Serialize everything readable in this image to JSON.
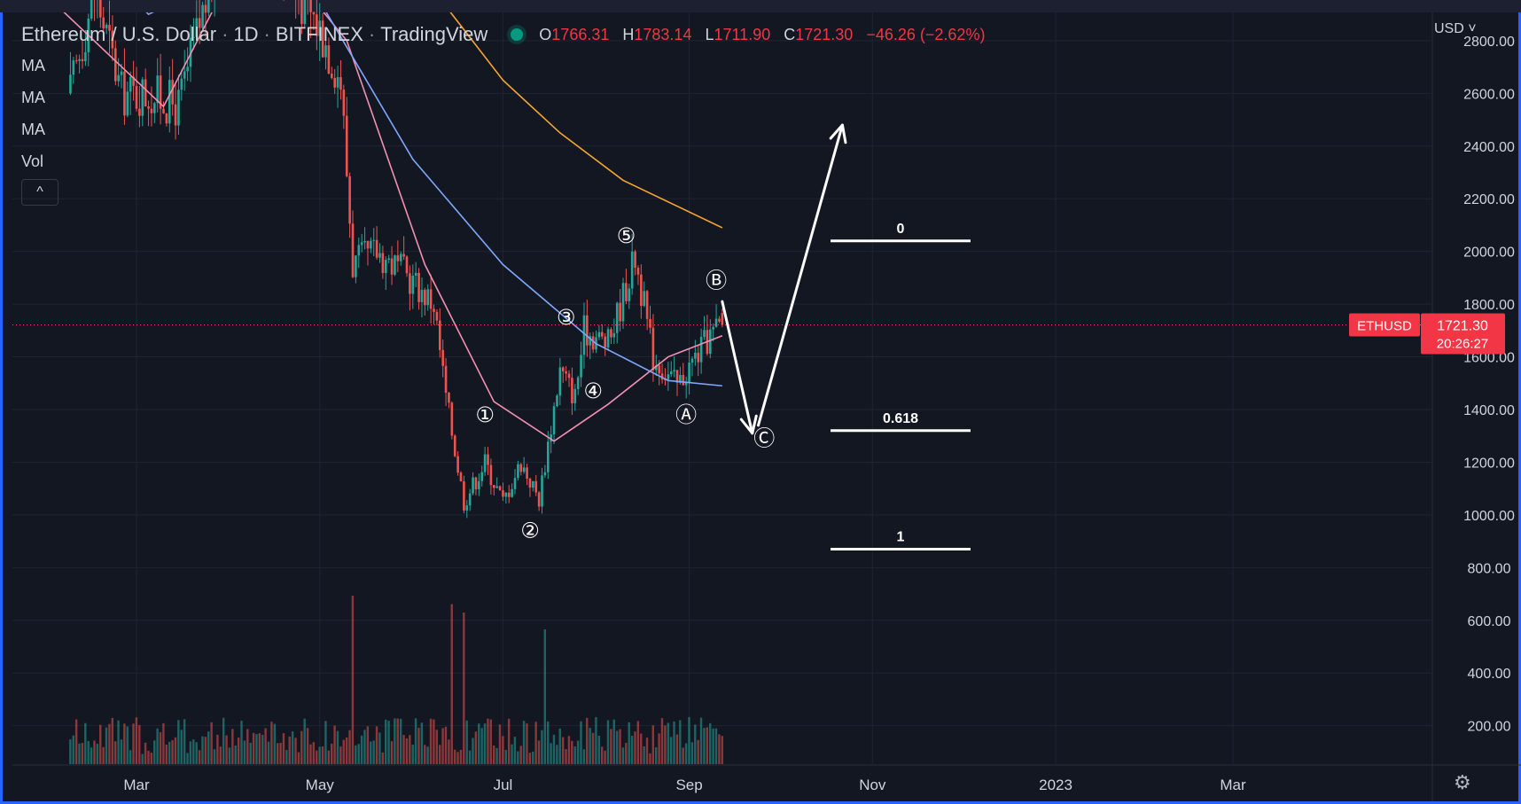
{
  "header": {
    "symbol_name": "Ethereum / U.S. Dollar",
    "interval": "1D",
    "exchange": "BITFINEX",
    "platform": "TradingView",
    "open_label": "O",
    "open_value": "1766.31",
    "high_label": "H",
    "high_value": "1783.14",
    "low_label": "L",
    "low_value": "1711.90",
    "close_label": "C",
    "close_value": "1721.30",
    "change": "−46.26 (−2.62%)"
  },
  "indicators": [
    "MA",
    "MA",
    "MA",
    "Vol"
  ],
  "collapse_glyph": "^",
  "price_scale": {
    "currency": "USD ˅"
  },
  "price_badge": {
    "symbol": "ETHUSD",
    "price": "1721.30",
    "countdown": "20:26:27"
  },
  "colors": {
    "background": "#131722",
    "frame": "#2962ff",
    "up": "#26a69a",
    "down": "#ef5350",
    "ma_pink": "#f48fb1",
    "ma_blue": "#7fa7ff",
    "ma_orange": "#f7a531",
    "annotation": "#ffffff"
  },
  "icons": {
    "settings": "gear-icon"
  },
  "chart_data": {
    "type": "candlestick",
    "y_axis_ticks": [
      "2800.00",
      "2600.00",
      "2400.00",
      "2200.00",
      "2000.00",
      "1800.00",
      "1600.00",
      "1400.00",
      "1200.00",
      "1000.00",
      "800.00",
      "600.00",
      "400.00",
      "200.00"
    ],
    "x_axis_ticks": [
      "Mar",
      "May",
      "Jul",
      "Sep",
      "Nov",
      "2023",
      "Mar"
    ],
    "ylim": [
      200,
      2900
    ],
    "last_price": 1721.3,
    "price_path": [
      {
        "date": "2022-02-07",
        "price": 2600
      },
      {
        "date": "2022-02-15",
        "price": 3000
      },
      {
        "date": "2022-02-24",
        "price": 2600
      },
      {
        "date": "2022-03-05",
        "price": 2600
      },
      {
        "date": "2022-03-15",
        "price": 2550
      },
      {
        "date": "2022-03-25",
        "price": 3000
      },
      {
        "date": "2022-04-05",
        "price": 3450
      },
      {
        "date": "2022-04-20",
        "price": 3050
      },
      {
        "date": "2022-05-01",
        "price": 2850
      },
      {
        "date": "2022-05-08",
        "price": 2650
      },
      {
        "date": "2022-05-12",
        "price": 1950
      },
      {
        "date": "2022-05-20",
        "price": 2000
      },
      {
        "date": "2022-05-31",
        "price": 1900
      },
      {
        "date": "2022-06-08",
        "price": 1800
      },
      {
        "date": "2022-06-12",
        "price": 1450
      },
      {
        "date": "2022-06-18",
        "price": 1050
      },
      {
        "date": "2022-06-25",
        "price": 1200
      },
      {
        "date": "2022-07-01",
        "price": 1050
      },
      {
        "date": "2022-07-07",
        "price": 1200
      },
      {
        "date": "2022-07-13",
        "price": 1060
      },
      {
        "date": "2022-07-20",
        "price": 1550
      },
      {
        "date": "2022-07-25",
        "price": 1450
      },
      {
        "date": "2022-07-28",
        "price": 1700
      },
      {
        "date": "2022-08-05",
        "price": 1650
      },
      {
        "date": "2022-08-14",
        "price": 1980
      },
      {
        "date": "2022-08-20",
        "price": 1600
      },
      {
        "date": "2022-08-28",
        "price": 1490
      },
      {
        "date": "2022-09-02",
        "price": 1580
      },
      {
        "date": "2022-09-08",
        "price": 1680
      },
      {
        "date": "2022-09-12",
        "price": 1721.3
      }
    ],
    "volume": {
      "unit": "relative",
      "spikes": [
        {
          "date": "2022-05-12",
          "value": 1.0
        },
        {
          "date": "2022-06-14",
          "value": 0.95
        },
        {
          "date": "2022-06-18",
          "value": 0.9
        },
        {
          "date": "2022-07-15",
          "value": 0.8
        }
      ]
    },
    "moving_averages": [
      {
        "color": "#f48fb1",
        "points": [
          {
            "date": "2022-02-01",
            "price": 2950
          },
          {
            "date": "2022-03-10",
            "price": 2550
          },
          {
            "date": "2022-03-28",
            "price": 2950
          },
          {
            "date": "2022-04-15",
            "price": 3150
          },
          {
            "date": "2022-05-10",
            "price": 2800
          },
          {
            "date": "2022-06-05",
            "price": 1950
          },
          {
            "date": "2022-06-28",
            "price": 1430
          },
          {
            "date": "2022-07-18",
            "price": 1280
          },
          {
            "date": "2022-08-05",
            "price": 1420
          },
          {
            "date": "2022-08-25",
            "price": 1600
          },
          {
            "date": "2022-09-12",
            "price": 1680
          }
        ]
      },
      {
        "color": "#7fa7ff",
        "points": [
          {
            "date": "2022-02-01",
            "price": 3300
          },
          {
            "date": "2022-03-05",
            "price": 2900
          },
          {
            "date": "2022-04-01",
            "price": 3050
          },
          {
            "date": "2022-05-01",
            "price": 2950
          },
          {
            "date": "2022-06-01",
            "price": 2350
          },
          {
            "date": "2022-07-01",
            "price": 1950
          },
          {
            "date": "2022-08-01",
            "price": 1650
          },
          {
            "date": "2022-08-25",
            "price": 1510
          },
          {
            "date": "2022-09-12",
            "price": 1490
          }
        ]
      },
      {
        "color": "#f7a531",
        "points": [
          {
            "date": "2022-06-10",
            "price": 2960
          },
          {
            "date": "2022-07-01",
            "price": 2650
          },
          {
            "date": "2022-07-20",
            "price": 2450
          },
          {
            "date": "2022-08-10",
            "price": 2270
          },
          {
            "date": "2022-09-12",
            "price": 2090
          }
        ]
      }
    ],
    "wave_labels": [
      {
        "text": "①",
        "date": "2022-06-25",
        "price": 1380
      },
      {
        "text": "②",
        "date": "2022-07-10",
        "price": 940
      },
      {
        "text": "③",
        "date": "2022-07-22",
        "price": 1750
      },
      {
        "text": "④",
        "date": "2022-07-31",
        "price": 1470
      },
      {
        "text": "⑤",
        "date": "2022-08-11",
        "price": 2060
      },
      {
        "text": "Ⓐ",
        "date": "2022-08-31",
        "price": 1380
      },
      {
        "text": "Ⓑ",
        "date": "2022-09-10",
        "price": 1890
      },
      {
        "text": "Ⓒ",
        "date": "2022-09-26",
        "price": 1290
      }
    ],
    "fib_levels": [
      {
        "label": "0",
        "price": 2040
      },
      {
        "label": "0.618",
        "price": 1320
      },
      {
        "label": "1",
        "price": 870
      }
    ],
    "arrows": [
      {
        "from": {
          "date": "2022-09-12",
          "price": 1810
        },
        "to": {
          "date": "2022-09-22",
          "price": 1310
        }
      },
      {
        "from": {
          "date": "2022-09-24",
          "price": 1340
        },
        "to": {
          "date": "2022-10-22",
          "price": 2480
        }
      }
    ]
  }
}
